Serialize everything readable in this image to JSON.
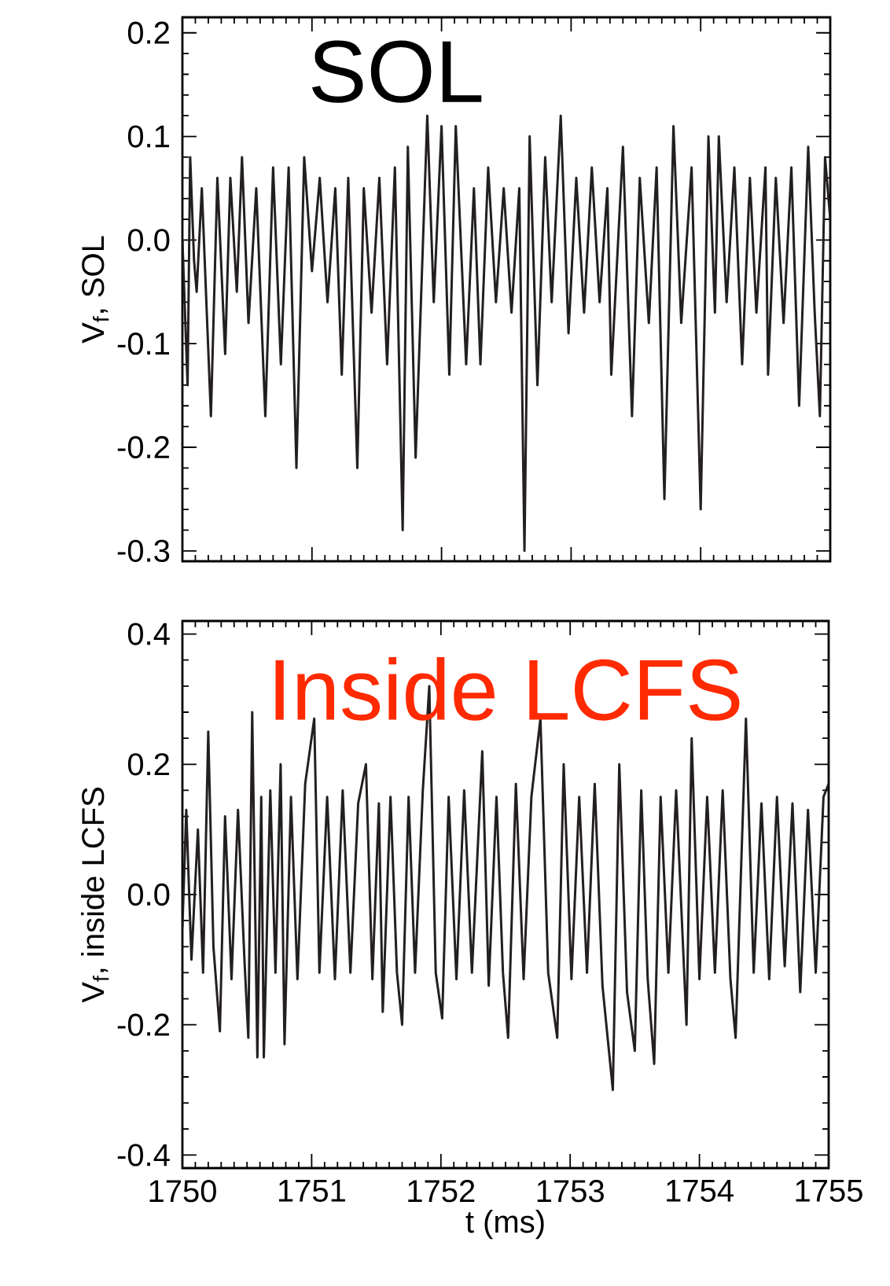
{
  "chart_data": [
    {
      "type": "line",
      "ylabel": "V$_{f}$, SOL",
      "annotations": [
        "SOL"
      ],
      "color": "#231f20",
      "tick_labels": "y",
      "xlim": [
        1750,
        1755
      ],
      "xticks": [
        1750,
        1751,
        1752,
        1753,
        1754,
        1755
      ],
      "ylim": [
        -0.31,
        0.215
      ],
      "yticks": [
        0.2,
        0.1,
        {
          "value": 0,
          "label": "0.0"
        },
        -0.1,
        -0.2,
        -0.3
      ],
      "x": [
        1750.0,
        1750.04,
        1750.06,
        1750.09,
        1750.11,
        1750.15,
        1750.22,
        1750.27,
        1750.33,
        1750.37,
        1750.42,
        1750.46,
        1750.51,
        1750.57,
        1750.64,
        1750.7,
        1750.76,
        1750.82,
        1750.88,
        1750.94,
        1751.0,
        1751.06,
        1751.12,
        1751.18,
        1751.23,
        1751.28,
        1751.35,
        1751.4,
        1751.46,
        1751.52,
        1751.58,
        1751.64,
        1751.7,
        1751.74,
        1751.8,
        1751.89,
        1751.94,
        1752.0,
        1752.06,
        1752.11,
        1752.19,
        1752.25,
        1752.3,
        1752.36,
        1752.42,
        1752.48,
        1752.54,
        1752.6,
        1752.64,
        1752.68,
        1752.74,
        1752.8,
        1752.85,
        1752.92,
        1752.98,
        1753.04,
        1753.1,
        1753.16,
        1753.22,
        1753.28,
        1753.31,
        1753.4,
        1753.47,
        1753.53,
        1753.6,
        1753.66,
        1753.72,
        1753.79,
        1753.85,
        1753.93,
        1754.0,
        1754.06,
        1754.11,
        1754.14,
        1754.2,
        1754.26,
        1754.32,
        1754.38,
        1754.43,
        1754.5,
        1754.52,
        1754.58,
        1754.64,
        1754.7,
        1754.76,
        1754.83,
        1754.88,
        1754.92,
        1754.96,
        1755.0
      ],
      "values": [
        0.0,
        -0.14,
        0.08,
        -0.02,
        -0.05,
        0.05,
        -0.17,
        0.06,
        -0.11,
        0.06,
        -0.05,
        0.08,
        -0.08,
        0.05,
        -0.17,
        0.07,
        -0.12,
        0.07,
        -0.22,
        0.08,
        -0.03,
        0.06,
        -0.06,
        0.05,
        -0.13,
        0.06,
        -0.22,
        0.05,
        -0.07,
        0.06,
        -0.12,
        0.07,
        -0.28,
        0.09,
        -0.21,
        0.12,
        -0.06,
        0.11,
        -0.13,
        0.11,
        -0.12,
        0.05,
        -0.12,
        0.07,
        -0.06,
        0.05,
        -0.07,
        0.05,
        -0.3,
        0.1,
        -0.14,
        0.08,
        -0.06,
        0.12,
        -0.09,
        0.06,
        -0.07,
        0.07,
        -0.06,
        0.05,
        -0.13,
        0.09,
        -0.17,
        0.06,
        -0.08,
        0.07,
        -0.25,
        0.11,
        -0.08,
        0.07,
        -0.26,
        0.1,
        -0.07,
        0.1,
        -0.06,
        0.07,
        -0.12,
        0.06,
        -0.07,
        0.07,
        -0.13,
        0.06,
        -0.08,
        0.07,
        -0.16,
        0.09,
        -0.07,
        -0.17,
        0.08,
        0.02
      ]
    },
    {
      "type": "line",
      "xlabel": "t (ms)",
      "ylabel": "V$_{f}$, inside LCFS",
      "annotations": [
        "Inside LCFS"
      ],
      "color": "#231f20",
      "xlim": [
        1750,
        1755
      ],
      "xticks": [
        1750,
        1751,
        1752,
        1753,
        1754,
        1755
      ],
      "ylim": [
        -0.42,
        0.42
      ],
      "yticks": [
        0.4,
        0.2,
        {
          "value": 0,
          "label": "0.0"
        },
        -0.2,
        -0.4
      ],
      "x": [
        1750.0,
        1750.03,
        1750.07,
        1750.12,
        1750.16,
        1750.2,
        1750.24,
        1750.29,
        1750.33,
        1750.38,
        1750.43,
        1750.48,
        1750.51,
        1750.54,
        1750.58,
        1750.61,
        1750.63,
        1750.68,
        1750.72,
        1750.76,
        1750.79,
        1750.84,
        1750.89,
        1750.95,
        1751.02,
        1751.06,
        1751.12,
        1751.18,
        1751.24,
        1751.3,
        1751.36,
        1751.42,
        1751.47,
        1751.52,
        1751.55,
        1751.61,
        1751.66,
        1751.7,
        1751.75,
        1751.8,
        1751.86,
        1751.91,
        1751.96,
        1752.01,
        1752.06,
        1752.12,
        1752.18,
        1752.24,
        1752.32,
        1752.37,
        1752.43,
        1752.48,
        1752.52,
        1752.58,
        1752.64,
        1752.7,
        1752.77,
        1752.83,
        1752.9,
        1752.95,
        1753.01,
        1753.07,
        1753.13,
        1753.19,
        1753.25,
        1753.33,
        1753.38,
        1753.44,
        1753.5,
        1753.55,
        1753.6,
        1753.65,
        1753.7,
        1753.76,
        1753.82,
        1753.9,
        1753.94,
        1754.0,
        1754.06,
        1754.12,
        1754.18,
        1754.24,
        1754.28,
        1754.36,
        1754.42,
        1754.48,
        1754.54,
        1754.6,
        1754.66,
        1754.72,
        1754.78,
        1754.84,
        1754.9,
        1754.96,
        1755.0
      ],
      "values": [
        -0.05,
        0.13,
        -0.1,
        0.1,
        -0.12,
        0.25,
        -0.08,
        -0.21,
        0.12,
        -0.13,
        0.13,
        -0.1,
        -0.22,
        0.28,
        -0.25,
        0.15,
        -0.25,
        0.16,
        -0.12,
        0.2,
        -0.23,
        0.15,
        -0.13,
        0.17,
        0.27,
        -0.12,
        0.15,
        -0.13,
        0.16,
        -0.12,
        0.14,
        0.2,
        -0.13,
        0.14,
        -0.18,
        0.15,
        -0.12,
        -0.2,
        0.15,
        -0.12,
        0.16,
        0.32,
        -0.12,
        -0.19,
        0.15,
        -0.13,
        0.16,
        -0.12,
        0.22,
        -0.14,
        0.15,
        -0.12,
        -0.22,
        0.17,
        -0.13,
        0.15,
        0.27,
        -0.12,
        -0.22,
        0.2,
        -0.13,
        0.15,
        -0.12,
        0.17,
        -0.14,
        -0.3,
        0.2,
        -0.15,
        -0.24,
        0.16,
        -0.13,
        -0.26,
        0.15,
        -0.12,
        0.16,
        -0.2,
        0.24,
        -0.13,
        0.15,
        -0.12,
        0.16,
        -0.13,
        -0.22,
        0.27,
        -0.12,
        0.14,
        -0.13,
        0.15,
        -0.11,
        0.14,
        -0.15,
        0.13,
        -0.12,
        0.15,
        0.17
      ]
    }
  ]
}
